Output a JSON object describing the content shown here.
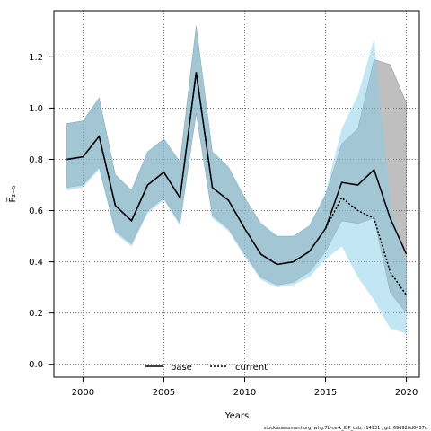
{
  "chart_data": {
    "type": "line",
    "xlabel": "Years",
    "ylabel": "F̅₂₋₅",
    "xlim": [
      1998.2,
      2020.8
    ],
    "ylim": [
      -0.05,
      1.38
    ],
    "xticks": [
      2000,
      2005,
      2010,
      2015,
      2020
    ],
    "yticks": [
      0.0,
      0.2,
      0.4,
      0.6,
      0.8,
      1.0,
      1.2
    ],
    "grid": true,
    "legend_position": "bottom-center",
    "series": [
      {
        "name": "base",
        "style": "solid",
        "color": "#000000",
        "band_color": "#7f7f7f",
        "x": [
          1999,
          2000,
          2001,
          2002,
          2003,
          2004,
          2005,
          2006,
          2007,
          2008,
          2009,
          2010,
          2011,
          2012,
          2013,
          2014,
          2015,
          2016,
          2017,
          2018,
          2019,
          2020
        ],
        "y": [
          0.8,
          0.81,
          0.89,
          0.62,
          0.56,
          0.7,
          0.75,
          0.65,
          1.14,
          0.69,
          0.64,
          0.53,
          0.43,
          0.39,
          0.4,
          0.44,
          0.53,
          0.71,
          0.7,
          0.76,
          0.57,
          0.43
        ],
        "lower": [
          0.69,
          0.7,
          0.77,
          0.52,
          0.47,
          0.6,
          0.65,
          0.55,
          0.98,
          0.58,
          0.53,
          0.43,
          0.34,
          0.31,
          0.32,
          0.36,
          0.44,
          0.56,
          0.55,
          0.57,
          0.28,
          0.2
        ],
        "upper": [
          0.94,
          0.95,
          1.04,
          0.74,
          0.68,
          0.83,
          0.88,
          0.79,
          1.32,
          0.83,
          0.77,
          0.65,
          0.55,
          0.5,
          0.5,
          0.54,
          0.66,
          0.86,
          0.92,
          1.19,
          1.17,
          1.02
        ]
      },
      {
        "name": "current",
        "style": "dotted",
        "color": "#000000",
        "band_color": "#87ceeb",
        "x": [
          1999,
          2000,
          2001,
          2002,
          2003,
          2004,
          2005,
          2006,
          2007,
          2008,
          2009,
          2010,
          2011,
          2012,
          2013,
          2014,
          2015,
          2016,
          2017,
          2018,
          2019,
          2020
        ],
        "y": [
          0.8,
          0.81,
          0.89,
          0.62,
          0.56,
          0.7,
          0.75,
          0.65,
          1.14,
          0.69,
          0.64,
          0.53,
          0.43,
          0.39,
          0.4,
          0.44,
          0.53,
          0.65,
          0.6,
          0.57,
          0.36,
          0.27
        ],
        "lower": [
          0.68,
          0.69,
          0.76,
          0.51,
          0.46,
          0.59,
          0.64,
          0.54,
          0.98,
          0.57,
          0.52,
          0.42,
          0.33,
          0.3,
          0.31,
          0.34,
          0.41,
          0.46,
          0.34,
          0.25,
          0.14,
          0.12
        ],
        "upper": [
          0.94,
          0.95,
          1.04,
          0.74,
          0.68,
          0.83,
          0.88,
          0.79,
          1.32,
          0.83,
          0.77,
          0.65,
          0.55,
          0.5,
          0.5,
          0.54,
          0.67,
          0.92,
          1.05,
          1.27,
          0.63,
          0.38
        ]
      }
    ]
  },
  "footnote": "stockassessment.org, whg.7b-ce-k_IBP_ceb, r14931 , git: 69d926d0437d"
}
